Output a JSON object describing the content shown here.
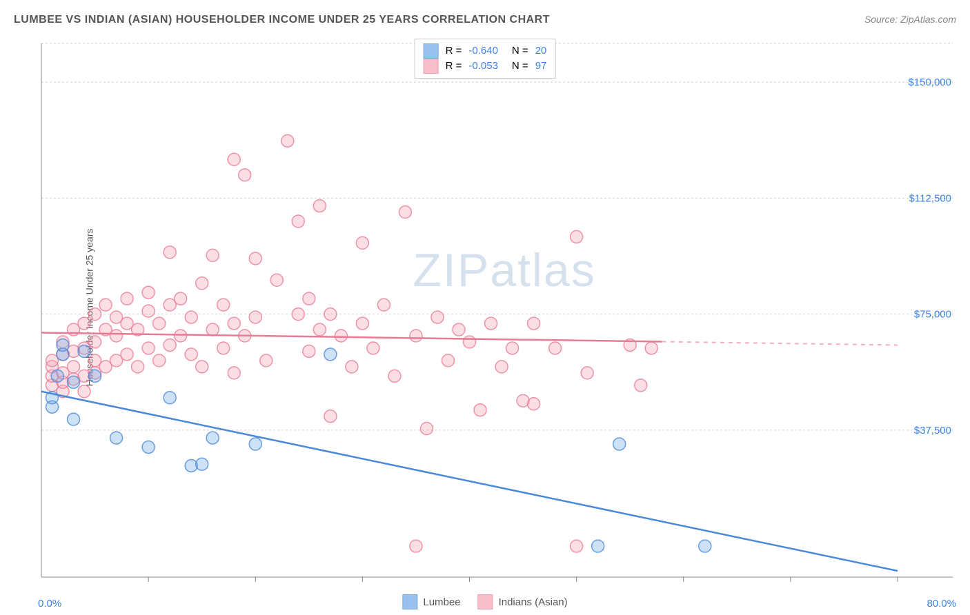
{
  "title": "LUMBEE VS INDIAN (ASIAN) HOUSEHOLDER INCOME UNDER 25 YEARS CORRELATION CHART",
  "source": "Source: ZipAtlas.com",
  "watermark_zip": "ZIP",
  "watermark_atlas": "atlas",
  "y_axis_label": "Householder Income Under 25 years",
  "chart": {
    "type": "scatter",
    "xlim": [
      0,
      80
    ],
    "ylim": [
      -10000,
      162500
    ],
    "x_min_label": "0.0%",
    "x_max_label": "80.0%",
    "y_ticks": [
      37500,
      75000,
      112500,
      150000
    ],
    "y_tick_labels": [
      "$37,500",
      "$75,000",
      "$112,500",
      "$150,000"
    ],
    "x_ticks": [
      10,
      20,
      30,
      40,
      50,
      60,
      70,
      80
    ],
    "background_color": "#ffffff",
    "grid_color": "#d0d0d0",
    "grid_dash": "3,3",
    "axis_color": "#888888",
    "marker_radius": 9,
    "marker_fill_opacity": 0.35,
    "marker_stroke_width": 1.5,
    "series": [
      {
        "name": "Lumbee",
        "color": "#6fa8e8",
        "stroke_color": "#4a88d8",
        "stats": {
          "R": "-0.640",
          "N": "20"
        },
        "trend": {
          "x1": 0,
          "y1": 50000,
          "x2": 80,
          "y2": -8000,
          "solid_end": 80
        },
        "points": [
          [
            1,
            45000
          ],
          [
            1,
            48000
          ],
          [
            1.5,
            55000
          ],
          [
            2,
            62000
          ],
          [
            2,
            65000
          ],
          [
            3,
            41000
          ],
          [
            3,
            53000
          ],
          [
            4,
            63000
          ],
          [
            5,
            55000
          ],
          [
            7,
            35000
          ],
          [
            10,
            32000
          ],
          [
            12,
            48000
          ],
          [
            14,
            26000
          ],
          [
            15,
            26500
          ],
          [
            16,
            35000
          ],
          [
            20,
            33000
          ],
          [
            27,
            62000
          ],
          [
            54,
            33000
          ],
          [
            62,
            0
          ],
          [
            52,
            0
          ]
        ]
      },
      {
        "name": "Indians (Asian)",
        "color": "#f5a3b5",
        "stroke_color": "#e87a95",
        "stats": {
          "R": "-0.053",
          "N": "97"
        },
        "trend": {
          "x1": 0,
          "y1": 69000,
          "x2": 80,
          "y2": 65000,
          "solid_end": 58
        },
        "points": [
          [
            1,
            52000
          ],
          [
            1,
            55000
          ],
          [
            1,
            58000
          ],
          [
            1,
            60000
          ],
          [
            2,
            50000
          ],
          [
            2,
            53000
          ],
          [
            2,
            56000
          ],
          [
            2,
            62000
          ],
          [
            2,
            66000
          ],
          [
            3,
            54000
          ],
          [
            3,
            58000
          ],
          [
            3,
            63000
          ],
          [
            3,
            70000
          ],
          [
            4,
            50000
          ],
          [
            4,
            55000
          ],
          [
            4,
            64000
          ],
          [
            4,
            72000
          ],
          [
            5,
            56000
          ],
          [
            5,
            60000
          ],
          [
            5,
            66000
          ],
          [
            5,
            75000
          ],
          [
            6,
            58000
          ],
          [
            6,
            70000
          ],
          [
            6,
            78000
          ],
          [
            7,
            60000
          ],
          [
            7,
            68000
          ],
          [
            7,
            74000
          ],
          [
            8,
            62000
          ],
          [
            8,
            72000
          ],
          [
            8,
            80000
          ],
          [
            9,
            58000
          ],
          [
            9,
            70000
          ],
          [
            10,
            64000
          ],
          [
            10,
            76000
          ],
          [
            10,
            82000
          ],
          [
            11,
            60000
          ],
          [
            11,
            72000
          ],
          [
            12,
            65000
          ],
          [
            12,
            78000
          ],
          [
            12,
            95000
          ],
          [
            13,
            68000
          ],
          [
            13,
            80000
          ],
          [
            14,
            62000
          ],
          [
            14,
            74000
          ],
          [
            15,
            58000
          ],
          [
            15,
            85000
          ],
          [
            16,
            70000
          ],
          [
            16,
            94000
          ],
          [
            17,
            64000
          ],
          [
            17,
            78000
          ],
          [
            18,
            56000
          ],
          [
            18,
            72000
          ],
          [
            18,
            125000
          ],
          [
            19,
            120000
          ],
          [
            19,
            68000
          ],
          [
            20,
            74000
          ],
          [
            20,
            93000
          ],
          [
            21,
            60000
          ],
          [
            22,
            86000
          ],
          [
            23,
            131000
          ],
          [
            24,
            75000
          ],
          [
            24,
            105000
          ],
          [
            25,
            63000
          ],
          [
            25,
            80000
          ],
          [
            26,
            70000
          ],
          [
            26,
            110000
          ],
          [
            27,
            42000
          ],
          [
            27,
            75000
          ],
          [
            28,
            68000
          ],
          [
            29,
            58000
          ],
          [
            30,
            72000
          ],
          [
            30,
            98000
          ],
          [
            31,
            64000
          ],
          [
            32,
            78000
          ],
          [
            33,
            55000
          ],
          [
            34,
            108000
          ],
          [
            35,
            68000
          ],
          [
            35,
            0
          ],
          [
            36,
            38000
          ],
          [
            37,
            74000
          ],
          [
            38,
            60000
          ],
          [
            39,
            70000
          ],
          [
            40,
            66000
          ],
          [
            41,
            44000
          ],
          [
            42,
            72000
          ],
          [
            43,
            58000
          ],
          [
            44,
            64000
          ],
          [
            45,
            47000
          ],
          [
            46,
            46000
          ],
          [
            46,
            72000
          ],
          [
            48,
            64000
          ],
          [
            50,
            100000
          ],
          [
            51,
            56000
          ],
          [
            55,
            65000
          ],
          [
            56,
            52000
          ],
          [
            57,
            64000
          ],
          [
            50,
            0
          ]
        ]
      }
    ],
    "legend": {
      "items": [
        {
          "label": "Lumbee",
          "series_idx": 0
        },
        {
          "label": "Indians (Asian)",
          "series_idx": 1
        }
      ]
    }
  }
}
